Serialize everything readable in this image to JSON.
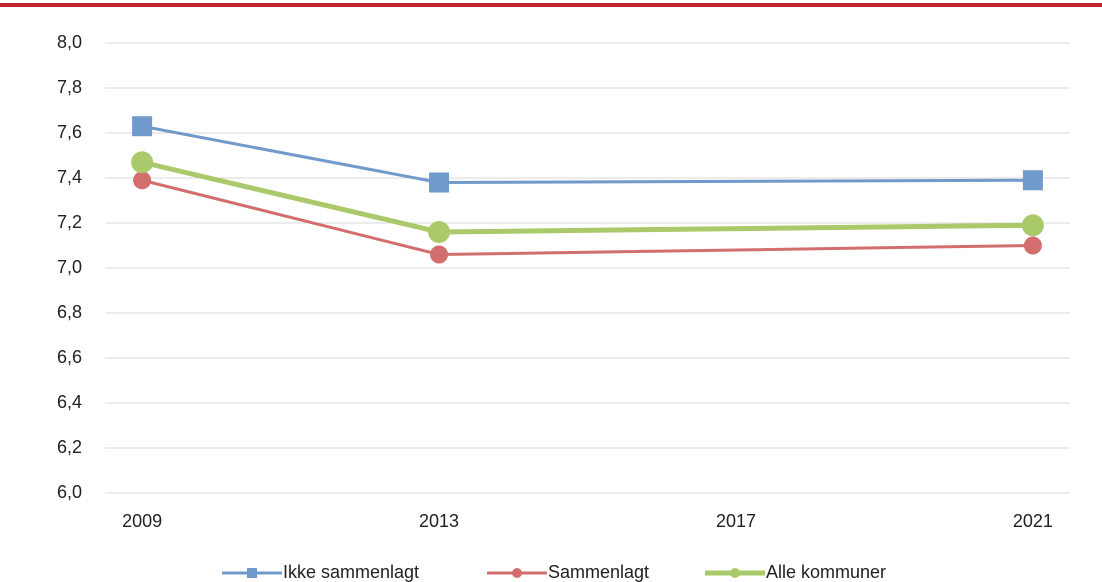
{
  "chart_data": {
    "type": "line",
    "x": [
      2009,
      2013,
      2021
    ],
    "xlim": [
      2008.5,
      2021.5
    ],
    "xticks": [
      2009,
      2013,
      2017,
      2021
    ],
    "ylim": [
      6,
      8
    ],
    "yticks": [
      {
        "value": 6,
        "label": "6,0"
      },
      {
        "value": 6.2,
        "label": "6,2"
      },
      {
        "value": 6.4,
        "label": "6,4"
      },
      {
        "value": 6.6,
        "label": "6,6"
      },
      {
        "value": 6.8,
        "label": "6,8"
      },
      {
        "value": 7,
        "label": "7,0"
      },
      {
        "value": 7.2,
        "label": "7,2"
      },
      {
        "value": 7.4,
        "label": "7,4"
      },
      {
        "value": 7.6,
        "label": "7,6"
      },
      {
        "value": 7.8,
        "label": "7,8"
      },
      {
        "value": 8,
        "label": "8,0"
      }
    ],
    "grid": true,
    "legend": "bottom",
    "series": [
      {
        "name": "Ikke sammenlagt",
        "color": "#7099cc",
        "marker": "square",
        "values": [
          7.63,
          7.38,
          7.39
        ]
      },
      {
        "name": "Sammenlagt",
        "color": "#d26e6e",
        "marker": "circle",
        "values": [
          7.39,
          7.06,
          7.1
        ]
      },
      {
        "name": "Alle kommuner",
        "color": "#a9c96a",
        "marker": "circle",
        "values": [
          7.47,
          7.16,
          7.19
        ]
      }
    ]
  }
}
